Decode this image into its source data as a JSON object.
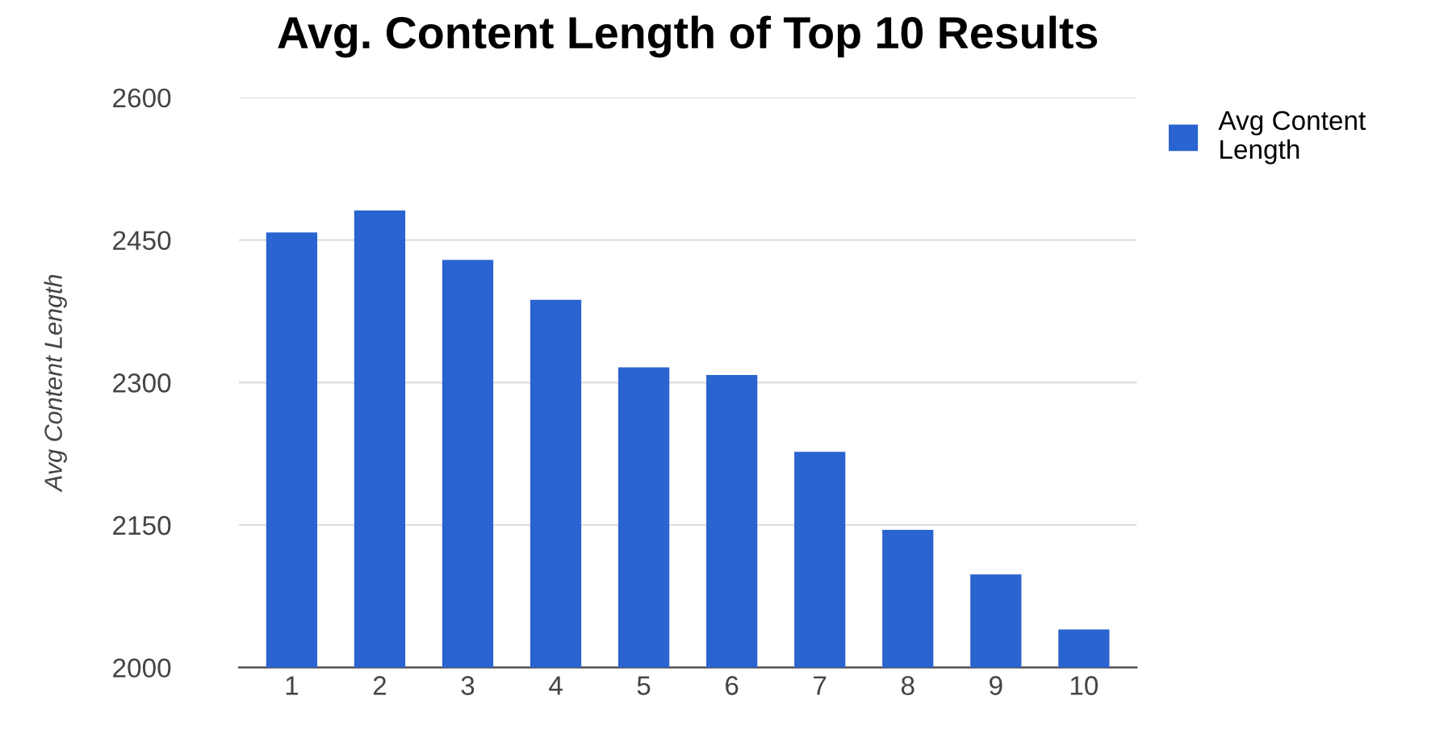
{
  "chart_data": {
    "type": "bar",
    "title": "Avg. Content Length of Top 10 Results",
    "ylabel": "Avg Content Length",
    "categories": [
      "1",
      "2",
      "3",
      "4",
      "5",
      "6",
      "7",
      "8",
      "9",
      "10"
    ],
    "series": [
      {
        "name": "Avg Content Length",
        "color": "#2a64d0",
        "values": [
          2458,
          2481,
          2429,
          2387,
          2316,
          2308,
          2227,
          2145,
          2098,
          2040
        ]
      }
    ],
    "ylim": [
      2000,
      2600
    ],
    "yticks": [
      2000,
      2150,
      2300,
      2450,
      2600
    ],
    "grid": "y",
    "legend": "top right"
  }
}
